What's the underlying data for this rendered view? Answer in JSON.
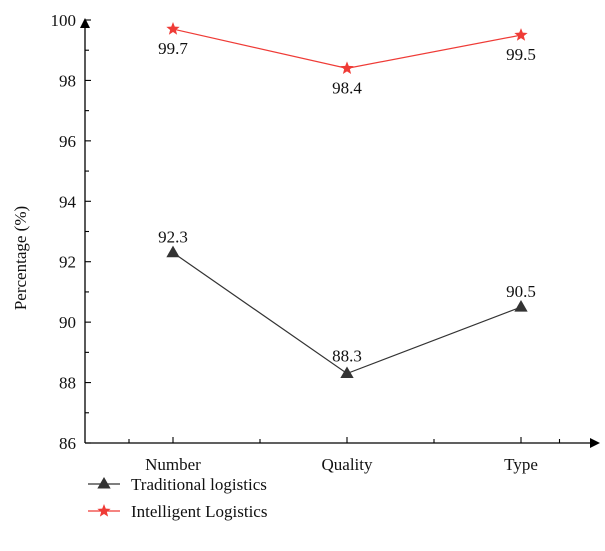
{
  "chart_data": {
    "type": "line",
    "title": "",
    "xlabel": "",
    "ylabel": "Percentage (%)",
    "categories": [
      "Number",
      "Quality",
      "Type"
    ],
    "ylim": [
      86,
      100
    ],
    "yticks": [
      "86",
      "88",
      "90",
      "92",
      "94",
      "96",
      "98",
      "100"
    ],
    "grid": false,
    "legend_position": "bottom-left",
    "series": [
      {
        "name": "Traditional logistics",
        "values": [
          92.3,
          88.3,
          90.5
        ],
        "labels": [
          "92.3",
          "88.3",
          "90.5"
        ],
        "color": "#333333",
        "marker": "triangle"
      },
      {
        "name": "Intelligent Logistics",
        "values": [
          99.7,
          98.4,
          99.5
        ],
        "labels": [
          "99.7",
          "98.4",
          "99.5"
        ],
        "color": "#ef3b36",
        "marker": "star"
      }
    ]
  }
}
